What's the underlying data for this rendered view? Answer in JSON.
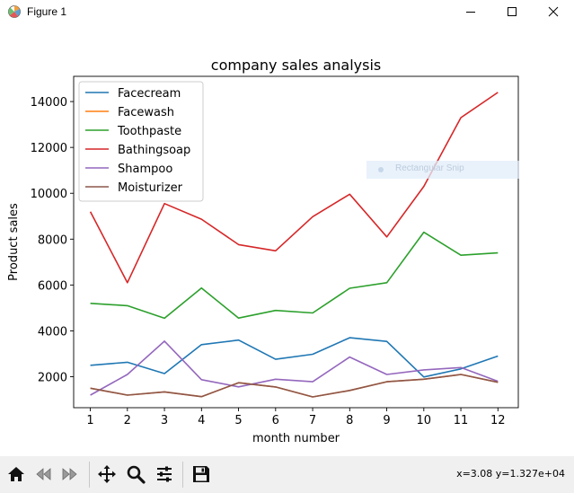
{
  "window": {
    "title": "Figure 1"
  },
  "overlay": {
    "label": "Rectangular Snip"
  },
  "status": {
    "coords": "x=3.08 y=1.327e+04"
  },
  "toolbar": {
    "buttons": [
      "home-icon",
      "back-icon",
      "forward-icon",
      "pan-icon",
      "zoom-icon",
      "configure-icon",
      "save-icon"
    ]
  },
  "chart_data": {
    "type": "line",
    "title": "company sales analysis",
    "xlabel": "month number",
    "ylabel": "Product sales",
    "x": [
      1,
      2,
      3,
      4,
      5,
      6,
      7,
      8,
      9,
      10,
      11,
      12
    ],
    "xlim": [
      0.55,
      12.55
    ],
    "ylim": [
      650,
      15100
    ],
    "yticks": [
      2000,
      4000,
      6000,
      8000,
      10000,
      12000,
      14000
    ],
    "grid": false,
    "legend_position": "top-left",
    "series": [
      {
        "name": "Facecream",
        "color": "#1f77b4",
        "values": [
          2500,
          2630,
          2140,
          3400,
          3600,
          2760,
          2980,
          3700,
          3540,
          1990,
          2340,
          2900
        ]
      },
      {
        "name": "Facewash",
        "color": "#ff7f0e",
        "values": [
          1500,
          1200,
          1340,
          1130,
          1740,
          1555,
          1120,
          1400,
          1780,
          1890,
          2100,
          1760
        ]
      },
      {
        "name": "Toothpaste",
        "color": "#2ca02c",
        "values": [
          5200,
          5100,
          4550,
          5870,
          4560,
          4890,
          4780,
          5860,
          6100,
          8300,
          7300,
          7400
        ]
      },
      {
        "name": "Bathingsoap",
        "color": "#d62728",
        "values": [
          9200,
          6100,
          9550,
          8870,
          7760,
          7490,
          8980,
          9960,
          8100,
          10300,
          13300,
          14400
        ]
      },
      {
        "name": "Shampoo",
        "color": "#9467bd",
        "values": [
          1200,
          2100,
          3550,
          1870,
          1560,
          1890,
          1780,
          2860,
          2100,
          2300,
          2400,
          1800
        ]
      },
      {
        "name": "Moisturizer",
        "color": "#8c564b",
        "values": [
          1500,
          1200,
          1340,
          1130,
          1740,
          1555,
          1120,
          1400,
          1780,
          1890,
          2100,
          1760
        ]
      }
    ]
  }
}
